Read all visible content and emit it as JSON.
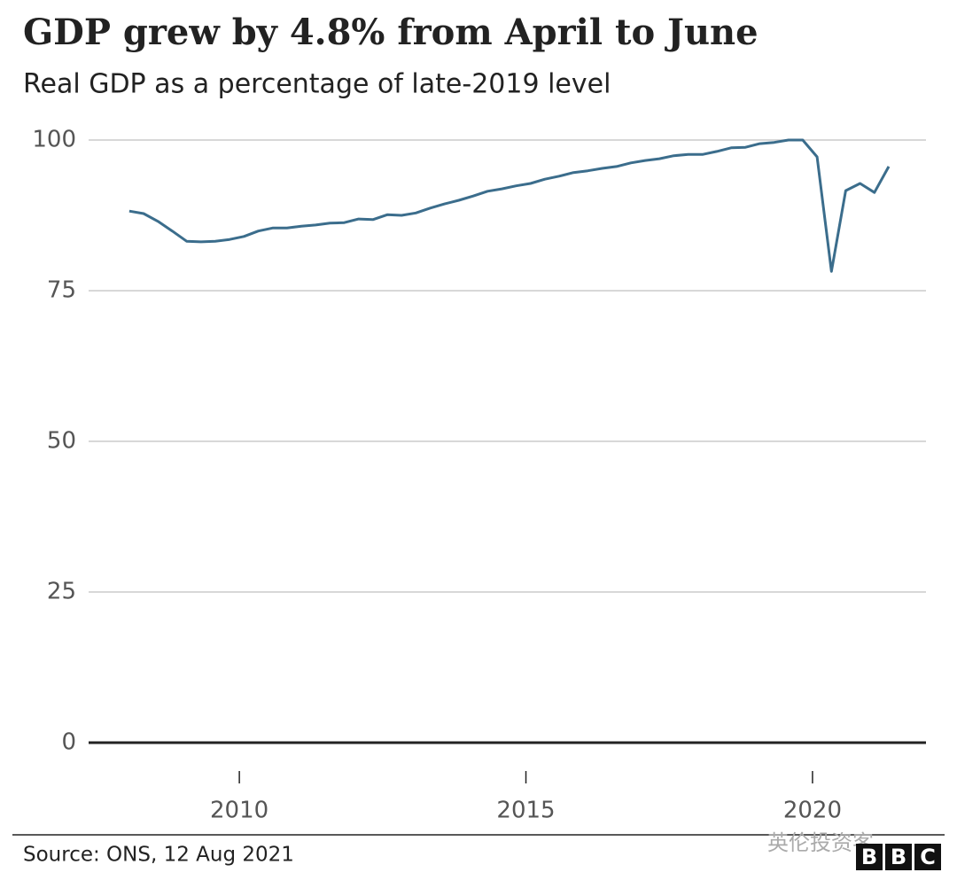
{
  "chart_data": {
    "type": "line",
    "title": "GDP grew by 4.8% from April to June",
    "subtitle": "Real GDP as a percentage of late-2019 level",
    "source": "Source: ONS, 12 Aug 2021",
    "watermark": "英伦投资客",
    "logo": [
      "B",
      "B",
      "C"
    ],
    "color": "#3b6d8c",
    "x": [
      2008.08,
      2008.33,
      2008.58,
      2008.83,
      2009.08,
      2009.33,
      2009.58,
      2009.83,
      2010.08,
      2010.33,
      2010.58,
      2010.83,
      2011.08,
      2011.33,
      2011.58,
      2011.83,
      2012.08,
      2012.33,
      2012.58,
      2012.83,
      2013.08,
      2013.33,
      2013.58,
      2013.83,
      2014.08,
      2014.33,
      2014.58,
      2014.83,
      2015.08,
      2015.33,
      2015.58,
      2015.83,
      2016.08,
      2016.33,
      2016.58,
      2016.83,
      2017.08,
      2017.33,
      2017.58,
      2017.83,
      2018.08,
      2018.33,
      2018.58,
      2018.83,
      2019.08,
      2019.33,
      2019.58,
      2019.83,
      2020.08,
      2020.33,
      2020.58,
      2020.83,
      2021.08,
      2021.33
    ],
    "values": [
      88.2,
      87.8,
      86.5,
      84.9,
      83.2,
      83.1,
      83.2,
      83.5,
      84.0,
      84.9,
      85.4,
      85.4,
      85.7,
      85.9,
      86.2,
      86.3,
      86.9,
      86.8,
      87.6,
      87.5,
      87.9,
      88.7,
      89.4,
      90.0,
      90.7,
      91.5,
      91.9,
      92.4,
      92.8,
      93.5,
      94.0,
      94.6,
      94.9,
      95.3,
      95.6,
      96.2,
      96.6,
      96.9,
      97.4,
      97.6,
      97.6,
      98.1,
      98.7,
      98.8,
      99.4,
      99.6,
      100.0,
      100.0,
      97.2,
      78.2,
      91.6,
      92.8,
      91.3,
      95.6
    ],
    "xlim": [
      2007.37,
      2021.98
    ],
    "xticks": [
      2010,
      2015,
      2020
    ],
    "ylim": [
      0,
      100
    ],
    "yticks": [
      0,
      25,
      50,
      75,
      100
    ],
    "grid": true
  }
}
